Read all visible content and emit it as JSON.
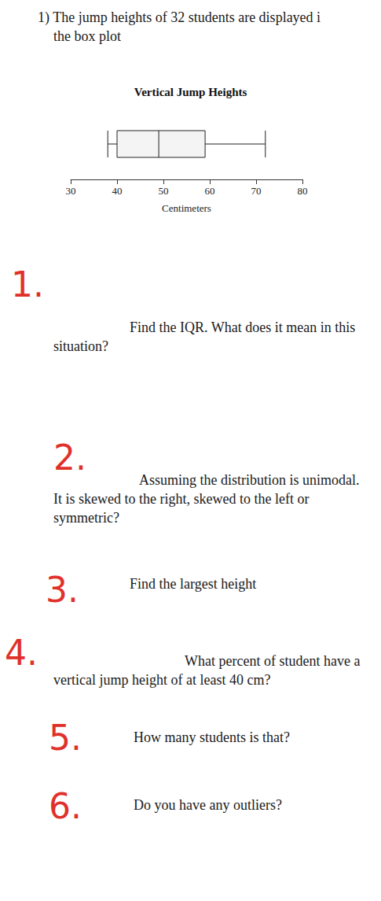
{
  "problem": {
    "lines": [
      "1) The jump heights of 32 students are displayed i",
      "the box plot"
    ]
  },
  "chart_data": {
    "type": "boxplot",
    "title": "Vertical Jump Heights",
    "x_label": "Centimeters",
    "values": [
      38,
      40,
      49,
      59,
      72
    ],
    "orientation": "horizontal",
    "xlim": [
      30,
      80
    ],
    "xticks": [
      30,
      40,
      50,
      60,
      70,
      80
    ],
    "grid": false
  },
  "questions": [
    {
      "number": "1.",
      "text": "Find the IQR. What does it mean in this situation?"
    },
    {
      "number": "2.",
      "text": "Assuming the distribution is unimodal. It is skewed to the right, skewed to the left or symmetric?"
    },
    {
      "number": "3.",
      "text": "Find the largest height"
    },
    {
      "number": "4.",
      "text": "What percent of student have a vertical jump height of at least 40 cm?"
    },
    {
      "number": "5.",
      "text": "How many students is that?"
    },
    {
      "number": "6.",
      "text": "Do you have any outliers?"
    }
  ]
}
